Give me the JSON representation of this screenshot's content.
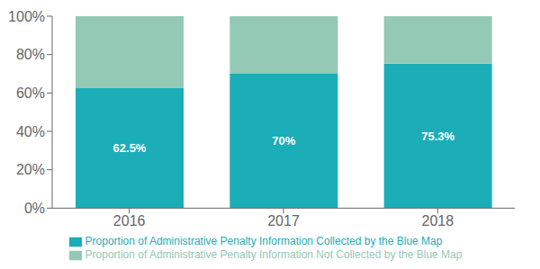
{
  "chart_data": {
    "type": "bar",
    "stacked": true,
    "categories": [
      "2016",
      "2017",
      "2018"
    ],
    "series": [
      {
        "name": "Proportion of Administrative Penalty Information Collected by the Blue Map",
        "color": "#1BADB8",
        "values": [
          62.5,
          70.0,
          75.3
        ],
        "value_labels": [
          "62.5%",
          "70%",
          "75.3%"
        ],
        "data_labels": true
      },
      {
        "name": "Proportion of Administrative Penalty Information Not Collected by the Blue Map",
        "color": "#93C9B5",
        "values": [
          37.5,
          30.0,
          24.7
        ]
      }
    ],
    "ylim": [
      0,
      100
    ],
    "yticks": [
      {
        "value": 0,
        "label": "0%"
      },
      {
        "value": 20,
        "label": "20%"
      },
      {
        "value": 40,
        "label": "40%"
      },
      {
        "value": 60,
        "label": "60%"
      },
      {
        "value": 80,
        "label": "80%"
      },
      {
        "value": 100,
        "label": "100%"
      }
    ],
    "grid": false,
    "legend": "bottom"
  }
}
